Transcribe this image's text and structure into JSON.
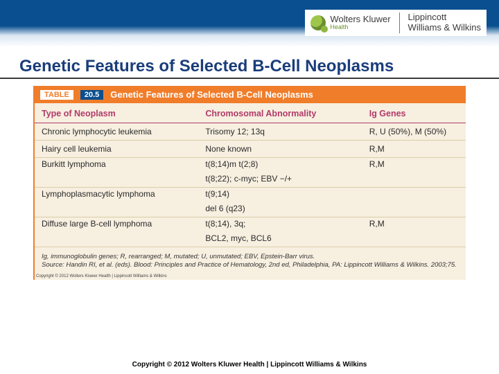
{
  "header": {
    "wk_name": "Wolters Kluwer",
    "wk_sub": "Health",
    "lw_line1": "Lippincott",
    "lw_line2": "Williams & Wilkins"
  },
  "slide": {
    "title": "Genetic Features of Selected B-Cell Neoplasms"
  },
  "table": {
    "caption_tag": "TABLE",
    "caption_num": "20.5",
    "caption_text": "Genetic Features of Selected B-Cell Neoplasms",
    "columns": [
      "Type of Neoplasm",
      "Chromosomal Abnormality",
      "Ig Genes"
    ],
    "rows": [
      {
        "cells": [
          "Chronic lymphocytic leukemia",
          "Trisomy 12; 13q",
          "R, U (50%), M (50%)"
        ],
        "border": true
      },
      {
        "cells": [
          "Hairy cell leukemia",
          "None known",
          "R,M"
        ],
        "border": true
      },
      {
        "cells": [
          "Burkitt lymphoma",
          "t(8;14)m t(2;8)",
          "R,M"
        ],
        "border": false
      },
      {
        "cells": [
          "",
          "t(8;22); c-myc; EBV −/+",
          ""
        ],
        "border": true
      },
      {
        "cells": [
          "Lymphoplasmacytic lymphoma",
          "t(9;14)",
          ""
        ],
        "border": false
      },
      {
        "cells": [
          "",
          "del 6 (q23)",
          ""
        ],
        "border": true
      },
      {
        "cells": [
          "Diffuse large B-cell lymphoma",
          "t(8;14), 3q;",
          "R,M"
        ],
        "border": false
      },
      {
        "cells": [
          "",
          "BCL2, myc, BCL6",
          ""
        ],
        "border": true
      }
    ],
    "footnote": "Ig, immunoglobulin genes; R, rearranged; M, mutated; U, unmutated; EBV, Epstein-Barr virus.\nSource: Handin RI, et al. (eds). Blood: Principles and Practice of Hematology, 2nd ed, Philadelphia, PA: Lippincott Williams & Wilkins. 2003;75.",
    "tiny_copy": "Copyright © 2012 Wolters Kluwer Health | Lippincott Williams & Wilkins",
    "colors": {
      "caption_bg": "#f07d2a",
      "header_text": "#b23a6a",
      "body_bg": "#f7efe0",
      "row_border": "#d9cfa8"
    }
  },
  "footer": {
    "text": "Copyright © 2012 Wolters Kluwer Health | Lippincott Williams & Wilkins"
  }
}
